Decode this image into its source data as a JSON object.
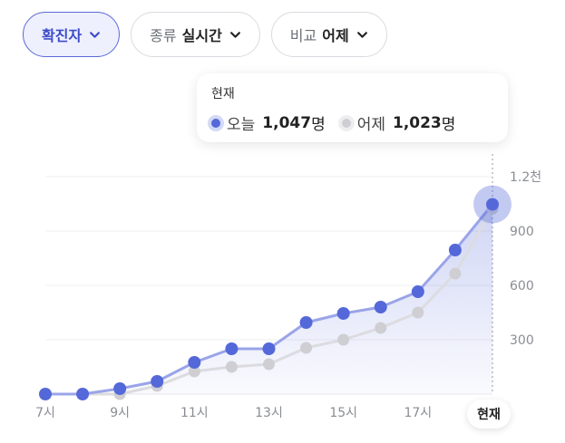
{
  "filters": [
    {
      "caption": "",
      "value": "확진자",
      "active": true
    },
    {
      "caption": "종류",
      "value": "실시간",
      "active": false
    },
    {
      "caption": "비교",
      "value": "어제",
      "active": false
    }
  ],
  "tooltip": {
    "title": "현재",
    "today_label": "오늘",
    "today_value": "1,047",
    "yesterday_label": "어제",
    "yesterday_value": "1,023",
    "unit": "명"
  },
  "now_badge": "현재",
  "colors": {
    "today": "#5468d9",
    "yesterday": "#cfcfd3",
    "active_pill": "#3d4bc7"
  },
  "icons": {
    "chevron": "chevron-down-icon"
  },
  "chart_data": {
    "type": "line",
    "x": [
      7,
      8,
      9,
      10,
      11,
      12,
      13,
      14,
      15,
      16,
      17,
      18,
      19
    ],
    "x_tick_labels": [
      "7시",
      "9시",
      "11시",
      "13시",
      "15시",
      "17시",
      "현재"
    ],
    "x_tick_positions": [
      7,
      9,
      11,
      13,
      15,
      17,
      19
    ],
    "y_tick_labels": [
      "1.2천",
      "900",
      "600",
      "300"
    ],
    "y_tick_values": [
      1200,
      900,
      600,
      300
    ],
    "ylim": [
      0,
      1200
    ],
    "series": [
      {
        "name": "오늘",
        "values": [
          0,
          0,
          30,
          70,
          175,
          250,
          250,
          395,
          445,
          480,
          565,
          795,
          1047
        ]
      },
      {
        "name": "어제",
        "values": [
          0,
          0,
          0,
          45,
          125,
          150,
          165,
          255,
          300,
          365,
          450,
          665,
          1023
        ]
      }
    ],
    "grid": true,
    "legend": "tooltip-top"
  }
}
